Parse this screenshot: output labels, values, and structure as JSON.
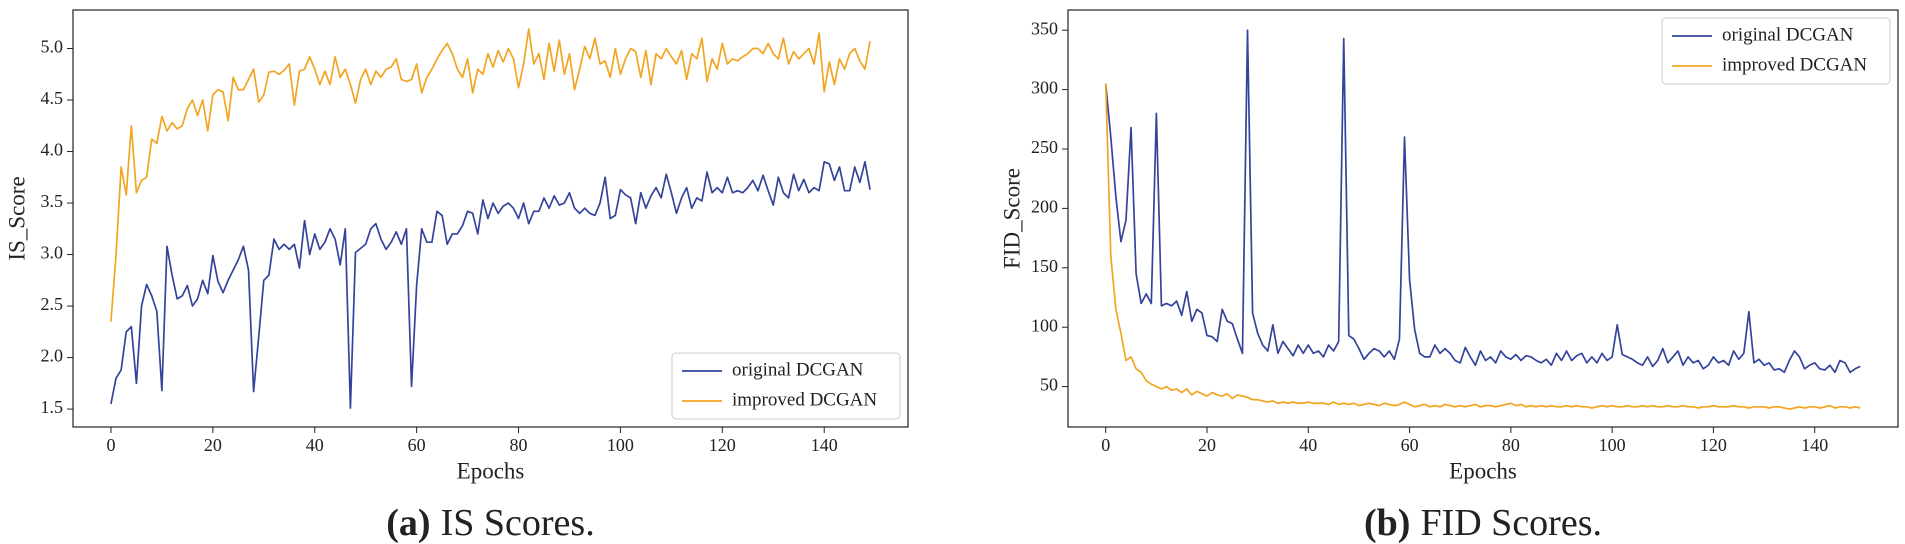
{
  "chart_data": [
    {
      "type": "line",
      "x_label": "Epochs",
      "y_label": "IS_Score",
      "caption": {
        "label": "(a)",
        "text": "IS Scores."
      },
      "legend": "lower right",
      "xlim": [
        -7.45,
        156.45
      ],
      "ylim": [
        1.326,
        5.374
      ],
      "xticks": [
        0,
        20,
        40,
        60,
        80,
        100,
        120,
        140
      ],
      "yticks": [
        1.5,
        {
          "value": 2,
          "label": "2.0"
        },
        2.5,
        {
          "value": 3,
          "label": "3.0"
        },
        3.5,
        {
          "value": 4,
          "label": "4.0"
        },
        4.5,
        {
          "value": 5,
          "label": "5.0"
        }
      ],
      "x": [
        0,
        1,
        2,
        3,
        4,
        5,
        6,
        7,
        8,
        9,
        10,
        11,
        12,
        13,
        14,
        15,
        16,
        17,
        18,
        19,
        20,
        21,
        22,
        23,
        24,
        25,
        26,
        27,
        28,
        29,
        30,
        31,
        32,
        33,
        34,
        35,
        36,
        37,
        38,
        39,
        40,
        41,
        42,
        43,
        44,
        45,
        46,
        47,
        48,
        49,
        50,
        51,
        52,
        53,
        54,
        55,
        56,
        57,
        58,
        59,
        60,
        61,
        62,
        63,
        64,
        65,
        66,
        67,
        68,
        69,
        70,
        71,
        72,
        73,
        74,
        75,
        76,
        77,
        78,
        79,
        80,
        81,
        82,
        83,
        84,
        85,
        86,
        87,
        88,
        89,
        90,
        91,
        92,
        93,
        94,
        95,
        96,
        97,
        98,
        99,
        100,
        101,
        102,
        103,
        104,
        105,
        106,
        107,
        108,
        109,
        110,
        111,
        112,
        113,
        114,
        115,
        116,
        117,
        118,
        119,
        120,
        121,
        122,
        123,
        124,
        125,
        126,
        127,
        128,
        129,
        130,
        131,
        132,
        133,
        134,
        135,
        136,
        137,
        138,
        139,
        140,
        141,
        142,
        143,
        144,
        145,
        146,
        147,
        148,
        149
      ],
      "series": [
        {
          "name": "original DCGAN",
          "color": "#34449a",
          "values": [
            1.55,
            1.8,
            1.88,
            2.25,
            2.3,
            1.75,
            2.5,
            2.71,
            2.6,
            2.45,
            1.68,
            3.08,
            2.8,
            2.57,
            2.6,
            2.7,
            2.5,
            2.57,
            2.75,
            2.62,
            2.99,
            2.74,
            2.63,
            2.75,
            2.85,
            2.95,
            3.08,
            2.85,
            1.67,
            2.2,
            2.75,
            2.8,
            3.15,
            3.05,
            3.1,
            3.05,
            3.1,
            2.87,
            3.33,
            3.0,
            3.2,
            3.05,
            3.12,
            3.25,
            3.15,
            2.9,
            3.25,
            1.51,
            3.02,
            3.06,
            3.1,
            3.25,
            3.3,
            3.15,
            3.05,
            3.12,
            3.22,
            3.1,
            3.25,
            1.72,
            2.7,
            3.25,
            3.12,
            3.12,
            3.42,
            3.38,
            3.1,
            3.2,
            3.2,
            3.28,
            3.42,
            3.4,
            3.2,
            3.53,
            3.35,
            3.5,
            3.4,
            3.47,
            3.5,
            3.45,
            3.35,
            3.5,
            3.3,
            3.42,
            3.42,
            3.55,
            3.45,
            3.57,
            3.48,
            3.5,
            3.6,
            3.45,
            3.4,
            3.45,
            3.4,
            3.38,
            3.5,
            3.75,
            3.35,
            3.38,
            3.63,
            3.58,
            3.55,
            3.3,
            3.6,
            3.45,
            3.57,
            3.65,
            3.55,
            3.78,
            3.6,
            3.4,
            3.55,
            3.65,
            3.45,
            3.55,
            3.52,
            3.8,
            3.6,
            3.65,
            3.6,
            3.75,
            3.6,
            3.62,
            3.6,
            3.65,
            3.72,
            3.62,
            3.77,
            3.62,
            3.48,
            3.75,
            3.6,
            3.55,
            3.78,
            3.62,
            3.73,
            3.6,
            3.65,
            3.62,
            3.9,
            3.88,
            3.72,
            3.85,
            3.62,
            3.62,
            3.85,
            3.7,
            3.9,
            3.63
          ]
        },
        {
          "name": "improved DCGAN",
          "color": "#f2a521",
          "values": [
            2.35,
            3.0,
            3.85,
            3.58,
            4.25,
            3.6,
            3.72,
            3.75,
            4.12,
            4.08,
            4.34,
            4.2,
            4.28,
            4.22,
            4.25,
            4.42,
            4.5,
            4.35,
            4.5,
            4.2,
            4.55,
            4.6,
            4.58,
            4.3,
            4.72,
            4.6,
            4.6,
            4.7,
            4.8,
            4.48,
            4.55,
            4.77,
            4.78,
            4.75,
            4.79,
            4.85,
            4.45,
            4.78,
            4.8,
            4.92,
            4.8,
            4.65,
            4.78,
            4.65,
            4.92,
            4.72,
            4.8,
            4.65,
            4.47,
            4.7,
            4.8,
            4.65,
            4.78,
            4.72,
            4.8,
            4.82,
            4.9,
            4.7,
            4.68,
            4.7,
            4.85,
            4.57,
            4.72,
            4.8,
            4.9,
            4.98,
            5.05,
            4.95,
            4.8,
            4.72,
            4.9,
            4.57,
            4.8,
            4.75,
            4.95,
            4.82,
            4.98,
            4.87,
            5.0,
            4.9,
            4.62,
            4.85,
            5.19,
            4.85,
            4.95,
            4.7,
            5.05,
            4.78,
            5.08,
            4.75,
            4.95,
            4.6,
            4.8,
            5.02,
            4.9,
            5.1,
            4.85,
            4.88,
            4.72,
            5.0,
            4.75,
            4.9,
            5.0,
            4.97,
            4.72,
            4.98,
            4.65,
            4.95,
            4.9,
            5.0,
            4.92,
            4.85,
            4.98,
            4.7,
            4.95,
            4.9,
            5.1,
            4.68,
            4.9,
            4.8,
            5.05,
            4.85,
            4.9,
            4.88,
            4.92,
            4.95,
            5.0,
            5.0,
            4.95,
            5.05,
            4.95,
            4.9,
            5.1,
            4.85,
            4.97,
            4.9,
            4.95,
            5.0,
            4.85,
            5.15,
            4.58,
            4.87,
            4.65,
            4.9,
            4.8,
            4.95,
            5.0,
            4.88,
            4.8,
            5.07
          ]
        }
      ]
    },
    {
      "type": "line",
      "x_label": "Epochs",
      "y_label": "FID_Score",
      "caption": {
        "label": "(b)",
        "text": "FID Scores."
      },
      "legend": "upper right",
      "xlim": [
        -7.45,
        156.45
      ],
      "ylim": [
        16,
        367
      ],
      "xticks": [
        0,
        20,
        40,
        60,
        80,
        100,
        120,
        140
      ],
      "yticks": [
        50,
        100,
        150,
        200,
        250,
        300,
        350
      ],
      "x": [
        0,
        1,
        2,
        3,
        4,
        5,
        6,
        7,
        8,
        9,
        10,
        11,
        12,
        13,
        14,
        15,
        16,
        17,
        18,
        19,
        20,
        21,
        22,
        23,
        24,
        25,
        26,
        27,
        28,
        29,
        30,
        31,
        32,
        33,
        34,
        35,
        36,
        37,
        38,
        39,
        40,
        41,
        42,
        43,
        44,
        45,
        46,
        47,
        48,
        49,
        50,
        51,
        52,
        53,
        54,
        55,
        56,
        57,
        58,
        59,
        60,
        61,
        62,
        63,
        64,
        65,
        66,
        67,
        68,
        69,
        70,
        71,
        72,
        73,
        74,
        75,
        76,
        77,
        78,
        79,
        80,
        81,
        82,
        83,
        84,
        85,
        86,
        87,
        88,
        89,
        90,
        91,
        92,
        93,
        94,
        95,
        96,
        97,
        98,
        99,
        100,
        101,
        102,
        103,
        104,
        105,
        106,
        107,
        108,
        109,
        110,
        111,
        112,
        113,
        114,
        115,
        116,
        117,
        118,
        119,
        120,
        121,
        122,
        123,
        124,
        125,
        126,
        127,
        128,
        129,
        130,
        131,
        132,
        133,
        134,
        135,
        136,
        137,
        138,
        139,
        140,
        141,
        142,
        143,
        144,
        145,
        146,
        147,
        148,
        149
      ],
      "series": [
        {
          "name": "original DCGAN",
          "color": "#34449a",
          "values": [
            305,
            260,
            210,
            172,
            190,
            268,
            145,
            120,
            128,
            120,
            280,
            118,
            120,
            118,
            122,
            110,
            130,
            105,
            115,
            112,
            93,
            92,
            88,
            115,
            105,
            103,
            90,
            78,
            350,
            112,
            95,
            85,
            80,
            102,
            78,
            88,
            82,
            76,
            85,
            78,
            85,
            78,
            80,
            75,
            85,
            80,
            88,
            343,
            93,
            90,
            82,
            73,
            78,
            82,
            80,
            75,
            80,
            73,
            90,
            260,
            140,
            98,
            78,
            75,
            75,
            85,
            78,
            82,
            78,
            72,
            70,
            83,
            75,
            68,
            80,
            72,
            75,
            70,
            80,
            75,
            73,
            77,
            72,
            76,
            75,
            72,
            70,
            73,
            68,
            78,
            72,
            80,
            72,
            76,
            78,
            70,
            75,
            70,
            78,
            72,
            75,
            102,
            77,
            75,
            73,
            70,
            68,
            75,
            67,
            72,
            82,
            70,
            75,
            80,
            68,
            75,
            70,
            72,
            65,
            68,
            75,
            70,
            72,
            68,
            80,
            73,
            78,
            113,
            70,
            73,
            68,
            70,
            64,
            65,
            62,
            72,
            80,
            75,
            65,
            68,
            70,
            65,
            64,
            68,
            62,
            72,
            70,
            62,
            65,
            67
          ]
        },
        {
          "name": "improved DCGAN",
          "color": "#f2a521",
          "values": [
            305,
            160,
            115,
            95,
            72,
            75,
            65,
            62,
            55,
            52,
            50,
            48,
            50,
            47,
            48,
            45,
            48,
            43,
            46,
            44,
            42,
            45,
            43,
            42,
            44,
            40,
            43,
            42,
            41,
            39,
            39,
            38,
            37,
            38,
            36,
            37,
            36,
            37,
            36,
            36,
            37,
            36,
            36,
            36,
            35,
            37,
            35,
            36,
            35,
            36,
            34,
            35,
            36,
            35,
            34,
            36,
            35,
            34,
            35,
            37,
            35,
            33,
            34,
            35,
            33,
            34,
            33,
            35,
            34,
            33,
            34,
            33,
            34,
            35,
            33,
            34,
            34,
            33,
            34,
            35,
            36,
            34,
            35,
            33,
            34,
            33,
            34,
            33,
            34,
            33,
            33,
            34,
            33,
            34,
            33,
            33,
            32,
            33,
            34,
            33,
            34,
            33,
            33,
            34,
            33,
            33,
            34,
            33,
            34,
            33,
            33,
            34,
            33,
            33,
            34,
            33,
            33,
            32,
            33,
            33,
            34,
            33,
            33,
            33,
            34,
            33,
            33,
            32,
            33,
            33,
            33,
            32,
            33,
            33,
            32,
            31,
            32,
            33,
            32,
            33,
            33,
            32,
            33,
            34,
            32,
            33,
            33,
            32,
            33,
            32
          ]
        }
      ]
    }
  ]
}
